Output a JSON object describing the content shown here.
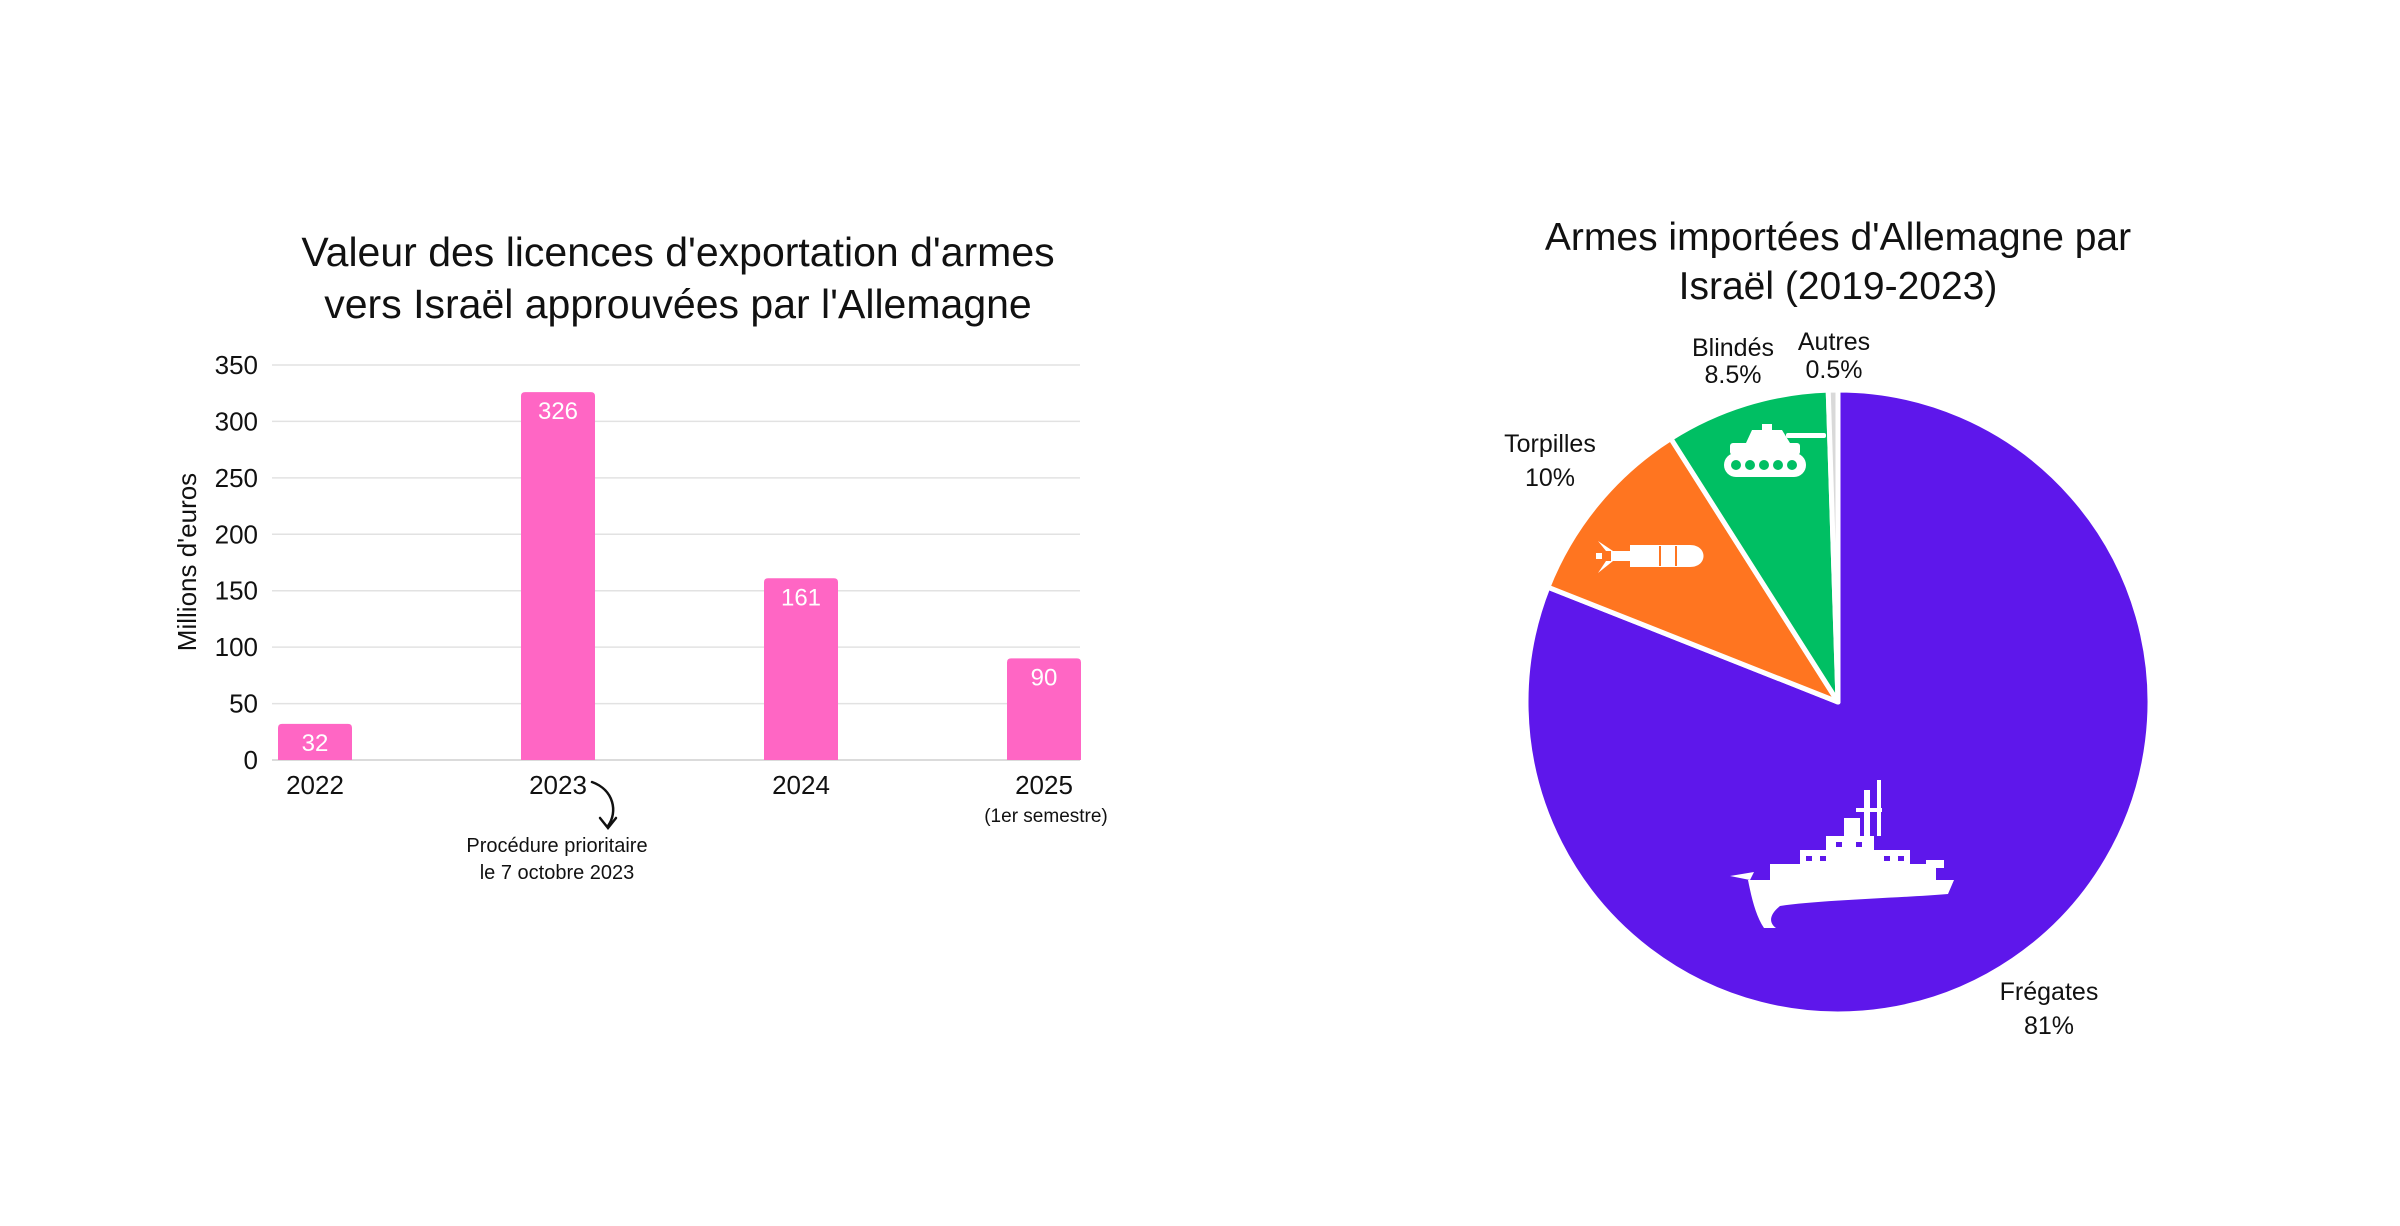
{
  "chart_data": [
    {
      "type": "bar",
      "title_lines": [
        "Valeur des licences d'exportation d'armes",
        "vers Israël approuvées par l'Allemagne"
      ],
      "ylabel": "Millions d'euros",
      "ylim": [
        0,
        350
      ],
      "yticks": [
        0,
        50,
        100,
        150,
        200,
        250,
        300,
        350
      ],
      "grid": true,
      "categories": [
        "2022",
        "2023",
        "2024",
        "2025"
      ],
      "category_notes": [
        "",
        "",
        "",
        "(1er semestre)"
      ],
      "values": [
        32,
        326,
        161,
        90
      ],
      "data_labels": [
        "32",
        "326",
        "161",
        "90"
      ],
      "bar_color": "#ff66c4",
      "annotation": {
        "target_category": "2023",
        "lines": [
          "Procédure prioritaire",
          "le 7 octobre 2023"
        ]
      }
    },
    {
      "type": "pie",
      "title_lines": [
        "Armes importées d'Allemagne par",
        "Israël (2019-2023)"
      ],
      "slices": [
        {
          "label": "Frégates",
          "value": 81,
          "value_label": "81%",
          "color": "#5e17eb",
          "icon": "frigate-icon"
        },
        {
          "label": "Torpilles",
          "value": 10,
          "value_label": "10%",
          "color": "#ff7520",
          "icon": "torpedo-icon"
        },
        {
          "label": "Blindés",
          "value": 8.5,
          "value_label": "8.5%",
          "color": "#00bf63",
          "icon": "tank-icon"
        },
        {
          "label": "Autres",
          "value": 0.5,
          "value_label": "0.5%",
          "color": "#d9d9d9",
          "icon": ""
        }
      ],
      "start_angle_deg": 0,
      "direction": "clockwise"
    }
  ]
}
